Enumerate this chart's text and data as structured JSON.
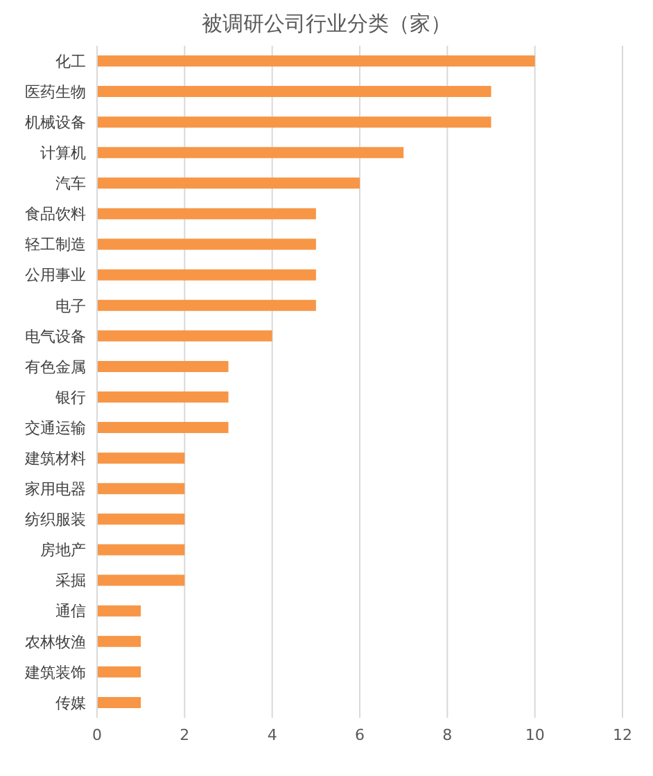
{
  "chart_data": {
    "type": "bar",
    "orientation": "horizontal",
    "title": "被调研公司行业分类（家）",
    "categories": [
      "化工",
      "医药生物",
      "机械设备",
      "计算机",
      "汽车",
      "食品饮料",
      "轻工制造",
      "公用事业",
      "电子",
      "电气设备",
      "有色金属",
      "银行",
      "交通运输",
      "建筑材料",
      "家用电器",
      "纺织服装",
      "房地产",
      "采掘",
      "通信",
      "农林牧渔",
      "建筑装饰",
      "传媒"
    ],
    "values": [
      10,
      9,
      9,
      7,
      6,
      5,
      5,
      5,
      5,
      4,
      3,
      3,
      3,
      2,
      2,
      2,
      2,
      2,
      1,
      1,
      1,
      1
    ],
    "color": "#f79646",
    "xlim": [
      0,
      12
    ],
    "xticks": [
      0,
      2,
      4,
      6,
      8,
      10,
      12
    ],
    "grid": "x",
    "legend": false
  }
}
